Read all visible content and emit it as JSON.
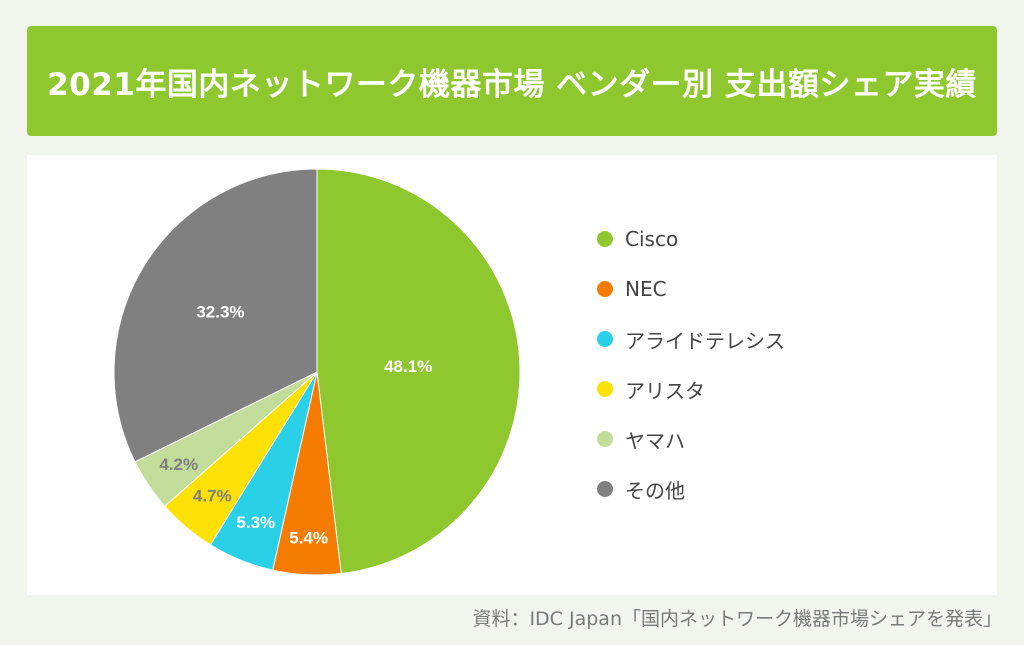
{
  "header": {
    "title": "2021年国内ネットワーク機器市場 ベンダー別 支出額シェア実績"
  },
  "chart_data": {
    "type": "pie",
    "title": "2021年国内ネットワーク機器市場 ベンダー別 支出額シェア実績",
    "unit": "%",
    "start": "12 o'clock",
    "direction": "clockwise",
    "legend_position": "right",
    "slices": [
      {
        "label": "Cisco",
        "value": 48.1,
        "display": "48.1%",
        "color": "#8ec72e",
        "value_label_color": "#ffffff"
      },
      {
        "label": "NEC",
        "value": 5.4,
        "display": "5.4%",
        "color": "#f57c00",
        "value_label_color": "#ffffff"
      },
      {
        "label": "アライドテレシス",
        "value": 5.3,
        "display": "5.3%",
        "color": "#29d0e8",
        "value_label_color": "#ffffff"
      },
      {
        "label": "アリスタ",
        "value": 4.7,
        "display": "4.7%",
        "color": "#fde004",
        "value_label_color": "#7f7f7f"
      },
      {
        "label": "ヤマハ",
        "value": 4.2,
        "display": "4.2%",
        "color": "#c2dd9a",
        "value_label_color": "#7f7f7f"
      },
      {
        "label": "その他",
        "value": 32.3,
        "display": "32.3%",
        "color": "#808080",
        "value_label_color": "#ffffff"
      }
    ]
  },
  "footer": {
    "source": "資料：IDC Japan「国内ネットワーク機器市場シェアを発表」"
  }
}
